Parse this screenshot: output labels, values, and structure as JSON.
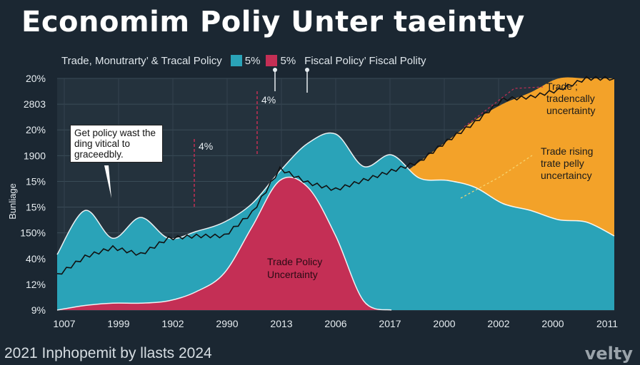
{
  "title": "Economim Poliy Unter taeintty",
  "legend": {
    "left_text": "Trade, Monutrarty’ & Tracal Policy",
    "items": [
      {
        "label": "5%",
        "color": "#2aa3b8"
      },
      {
        "label": "5%",
        "color": "#c42f55"
      }
    ],
    "right_text": "Fiscal Policy’ Fiscal Polity"
  },
  "footer": "2021 Inphopemit by llasts 2024",
  "brand": "velty",
  "callout": "Get policy wast the ding vitical to graceedbly.",
  "chart_data": {
    "type": "area",
    "ylabel": "Bunliage",
    "y_tick_labels": [
      "20%",
      "2803",
      "20%",
      "1900",
      "15%",
      "15%",
      "150%",
      "40%",
      "12%",
      "9%"
    ],
    "x_tick_labels": [
      "1007",
      "1999",
      "1902",
      "2990",
      "2013",
      "2006",
      "2017",
      "2000",
      "2002",
      "2000",
      "2011"
    ],
    "ylim": [
      0,
      10
    ],
    "x": [
      0,
      1,
      2,
      3,
      4,
      5,
      6,
      7,
      8,
      9,
      10,
      11,
      12,
      13,
      14,
      15,
      16,
      17,
      18,
      19,
      20
    ],
    "series": [
      {
        "name": "",
        "color": "#2aa3b8",
        "values": [
          2.4,
          4.3,
          3.1,
          4.0,
          3.1,
          3.4,
          3.8,
          4.6,
          6.0,
          7.2,
          7.6,
          6.2,
          6.7,
          5.7,
          5.6,
          5.3,
          4.6,
          4.3,
          3.9,
          3.8,
          3.2
        ]
      },
      {
        "name": "",
        "color": "#c42f55",
        "values": [
          0,
          0.2,
          0.3,
          0.3,
          0.4,
          0.8,
          1.6,
          3.6,
          5.6,
          5.3,
          3.2,
          0.4,
          0,
          0,
          0,
          0,
          0,
          0,
          0,
          0,
          0
        ]
      },
      {
        "name": "",
        "color": "#f3a229",
        "values": [
          0,
          0,
          0,
          0,
          0,
          0,
          0,
          0,
          0,
          0,
          0,
          0,
          5.5,
          6.4,
          7.3,
          8.2,
          8.9,
          9.4,
          10.0,
          10.0,
          10.0
        ]
      },
      {
        "name": "",
        "type": "line",
        "color": "#111111",
        "values": [
          1.5,
          2.3,
          2.7,
          2.4,
          3.1,
          3.2,
          3.2,
          4.2,
          6.1,
          5.5,
          5.2,
          5.6,
          6.0,
          6.4,
          7.3,
          8.1,
          9.1,
          9.2,
          9.5,
          10.0,
          10.0
        ]
      }
    ],
    "annotations": [
      {
        "text": "4%"
      },
      {
        "text": "4%"
      },
      {
        "text": "Trade Policy Uncertainty"
      },
      {
        "text": "Trade ; tradencally uncertainty"
      },
      {
        "text": "Trade rising trate pelly uncertaincy"
      }
    ],
    "grid": true
  }
}
